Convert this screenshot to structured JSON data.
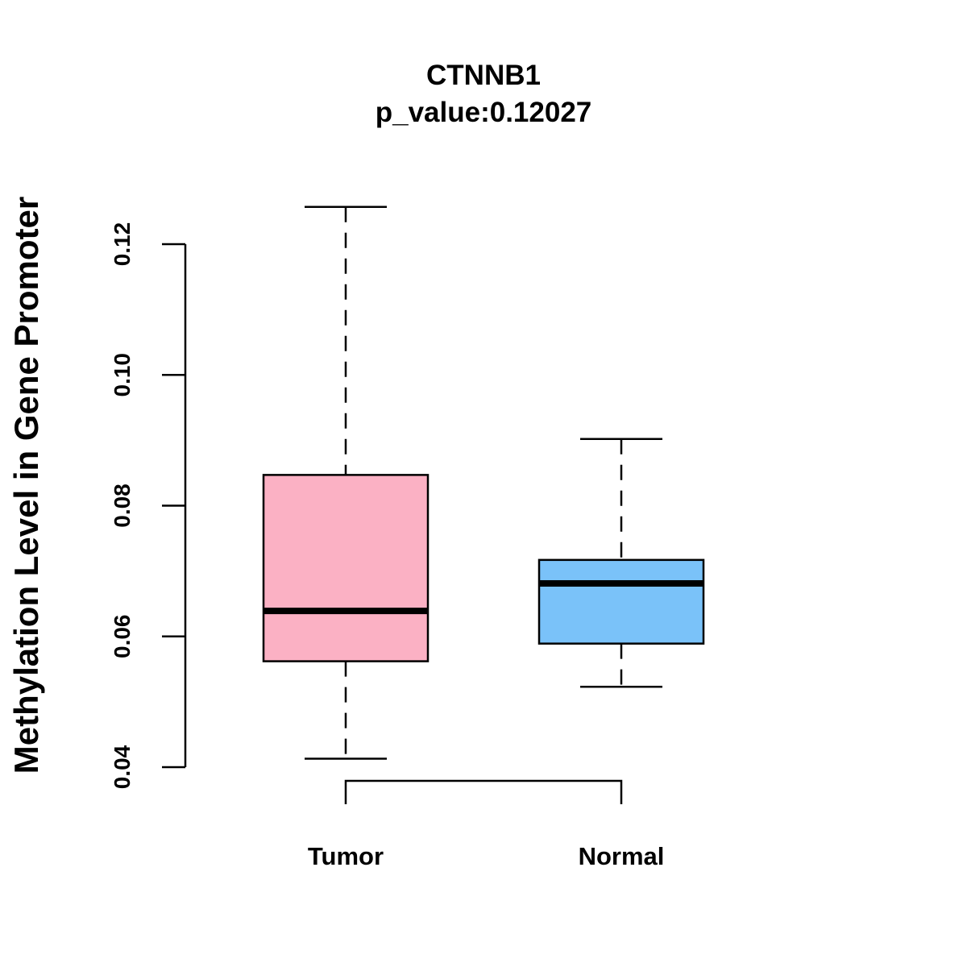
{
  "chart_data": {
    "type": "box",
    "title": "CTNNB1",
    "subtitle": "p_value:0.12027",
    "xlabel": "",
    "ylabel": "Methylation Level in Gene Promoter",
    "categories": [
      "Tumor",
      "Normal"
    ],
    "boxes": [
      {
        "name": "Tumor",
        "whisker_low": 0.0413,
        "q1": 0.0562,
        "median": 0.0639,
        "q3": 0.0847,
        "whisker_high": 0.1257,
        "fill": "#FBB1C4"
      },
      {
        "name": "Normal",
        "whisker_low": 0.0523,
        "q1": 0.0589,
        "median": 0.0681,
        "q3": 0.0717,
        "whisker_high": 0.0902,
        "fill": "#7AC2F9"
      }
    ],
    "yticks": [
      0.04,
      0.06,
      0.08,
      0.1,
      0.12
    ],
    "ytick_labels": [
      "0.04",
      "0.06",
      "0.08",
      "0.10",
      "0.12"
    ],
    "ylim": [
      0.04,
      0.12
    ],
    "grid": false,
    "legend": "none",
    "comparison_bracket": [
      "Tumor",
      "Normal"
    ]
  }
}
